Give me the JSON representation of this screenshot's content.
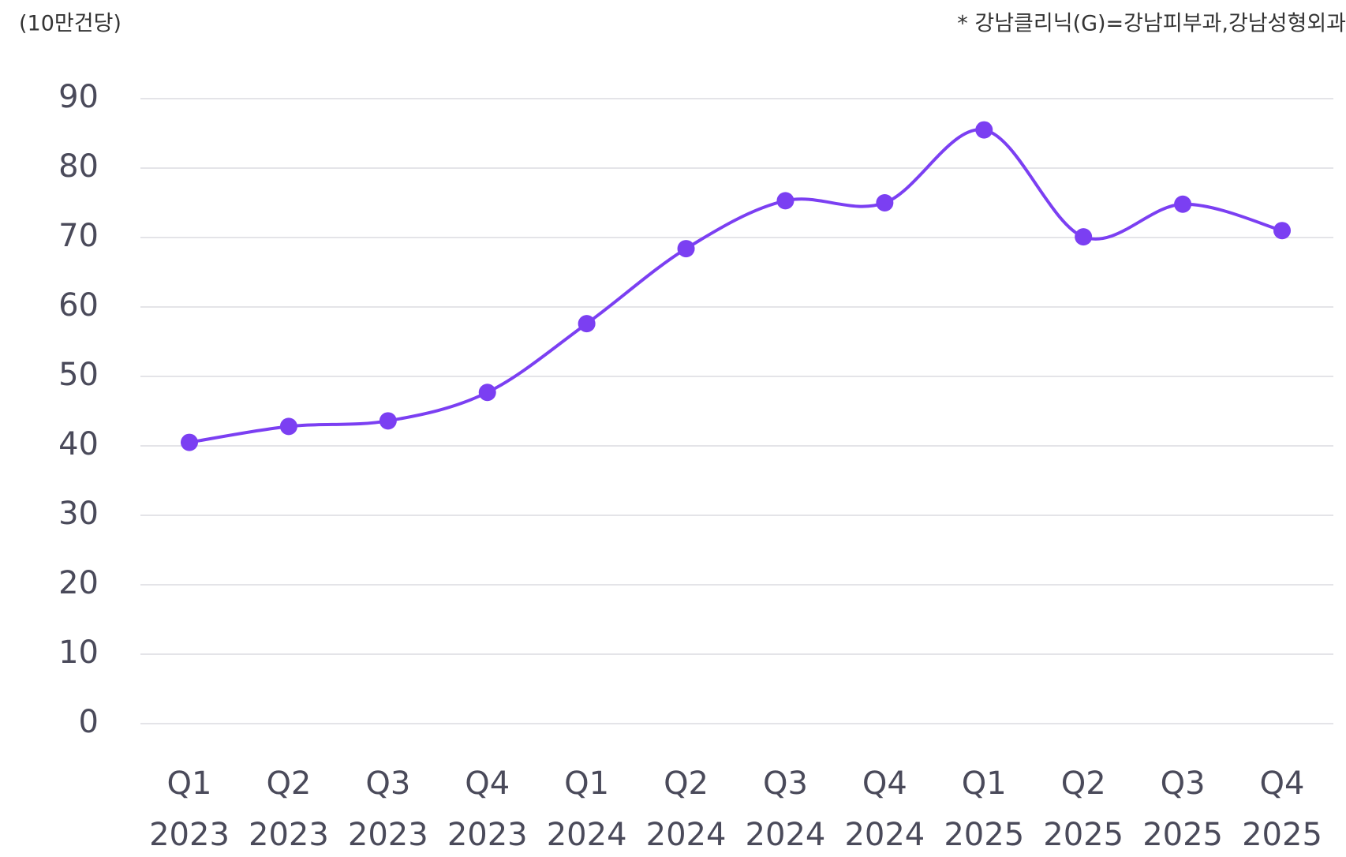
{
  "chart_data": {
    "type": "line",
    "unit_label": "(10만건당)",
    "note": "* 강남클리닉(G)=강남피부과,강남성형외과",
    "categories": [
      [
        "Q1",
        "2023"
      ],
      [
        "Q2",
        "2023"
      ],
      [
        "Q3",
        "2023"
      ],
      [
        "Q4",
        "2023"
      ],
      [
        "Q1",
        "2024"
      ],
      [
        "Q2",
        "2024"
      ],
      [
        "Q3",
        "2024"
      ],
      [
        "Q4",
        "2024"
      ],
      [
        "Q1",
        "2025"
      ],
      [
        "Q2",
        "2025"
      ],
      [
        "Q3",
        "2025"
      ],
      [
        "Q4",
        "2025"
      ]
    ],
    "series": [
      {
        "name": "강남클리닉(G)",
        "color": "#7b3ff2",
        "values": [
          40.5,
          42.8,
          43.6,
          47.7,
          57.6,
          68.4,
          75.3,
          75.0,
          85.5,
          70.1,
          74.8,
          71.0
        ]
      }
    ],
    "ylim": [
      0,
      90
    ],
    "yticks": [
      0,
      10,
      20,
      30,
      40,
      50,
      60,
      70,
      80,
      90
    ],
    "grid": true
  }
}
